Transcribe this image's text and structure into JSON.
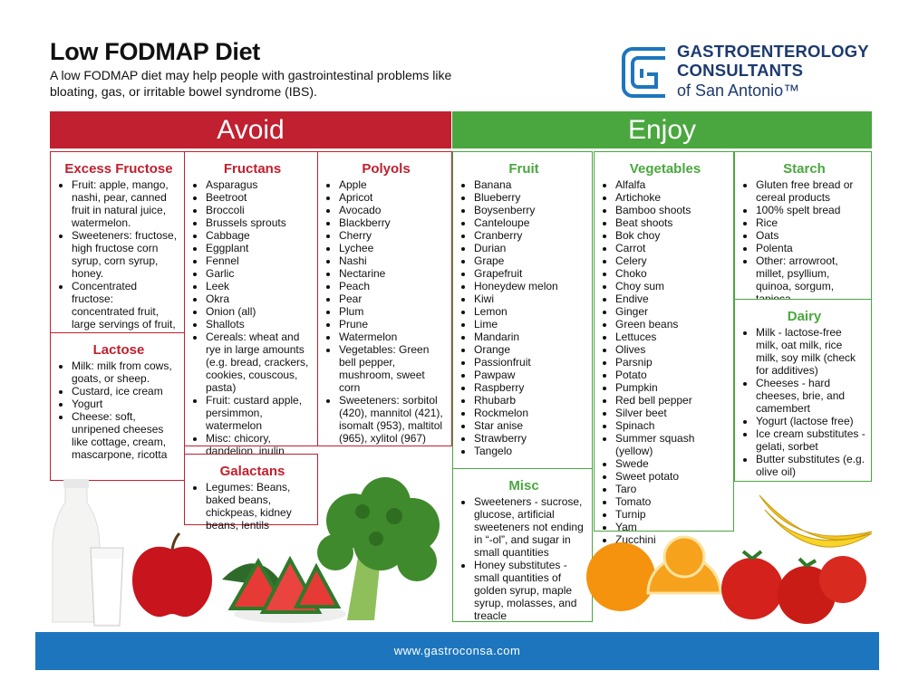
{
  "header": {
    "title": "Low FODMAP Diet",
    "subtitle": "A low FODMAP diet may help people with gastrointestinal problems like bloating, gas, or irritable bowel syndrome (IBS)."
  },
  "logo": {
    "line1": "GASTROENTEROLOGY",
    "line2": "CONSULTANTS",
    "line3": "of San Antonio™",
    "color": "#1d3a6e"
  },
  "colors": {
    "avoid": "#c0202f",
    "enjoy": "#4aa73f",
    "footer": "#1d76bd"
  },
  "avoid": {
    "label": "Avoid",
    "excess_fructose": {
      "title": "Excess Fructose",
      "items": [
        "Fruit: apple, mango, nashi, pear, canned fruit in natural juice, watermelon.",
        "Sweeteners: fructose, high fructose corn syrup, corn syrup, honey.",
        "Concentrated fructose: concentrated fruit, large servings of fruit, dried fruit, fruit juice."
      ]
    },
    "lactose": {
      "title": "Lactose",
      "items": [
        "Milk: milk from cows, goats, or sheep.",
        "Custard, ice cream",
        "Yogurt",
        "Cheese: soft, unripened cheeses like cottage, cream, mascarpone, ricotta"
      ]
    },
    "fructans": {
      "title": "Fructans",
      "items": [
        "Asparagus",
        "Beetroot",
        "Broccoli",
        "Brussels sprouts",
        "Cabbage",
        "Eggplant",
        "Fennel",
        "Garlic",
        "Leek",
        "Okra",
        "Onion (all)",
        "Shallots",
        "Cereals: wheat and rye in large amounts (e.g. bread, crackers, cookies, couscous, pasta)",
        "Fruit: custard apple, persimmon, watermelon",
        "Misc: chicory, dandelion, inulin"
      ]
    },
    "polyols": {
      "title": "Polyols",
      "items": [
        "Apple",
        "Apricot",
        "Avocado",
        "Blackberry",
        "Cherry",
        "Lychee",
        "Nashi",
        "Nectarine",
        "Peach",
        "Pear",
        "Plum",
        "Prune",
        "Watermelon",
        "Vegetables: Green bell pepper, mushroom, sweet corn",
        "Sweeteners: sorbitol (420), mannitol (421), isomalt (953), maltitol (965), xylitol (967)"
      ]
    },
    "galactans": {
      "title": "Galactans",
      "items": [
        "Legumes: Beans, baked beans, chickpeas, kidney beans, lentils"
      ]
    }
  },
  "enjoy": {
    "label": "Enjoy",
    "fruit": {
      "title": "Fruit",
      "items": [
        "Banana",
        "Blueberry",
        "Boysenberry",
        "Canteloupe",
        "Cranberry",
        "Durian",
        "Grape",
        "Grapefruit",
        "Honeydew melon",
        "Kiwi",
        "Lemon",
        "Lime",
        "Mandarin",
        "Orange",
        "Passionfruit",
        "Pawpaw",
        "Raspberry",
        "Rhubarb",
        "Rockmelon",
        "Star anise",
        "Strawberry",
        "Tangelo"
      ]
    },
    "vegetables": {
      "title": "Vegetables",
      "items": [
        "Alfalfa",
        "Artichoke",
        "Bamboo shoots",
        "Beat shoots",
        "Bok choy",
        "Carrot",
        "Celery",
        "Choko",
        "Choy sum",
        "Endive",
        "Ginger",
        "Green beans",
        "Lettuces",
        "Olives",
        "Parsnip",
        "Potato",
        "Pumpkin",
        "Red bell pepper",
        "Silver beet",
        "Spinach",
        "Summer squash (yellow)",
        "Swede",
        "Sweet potato",
        "Taro",
        "Tomato",
        "Turnip",
        "Yam",
        "Zucchini"
      ]
    },
    "starch": {
      "title": "Starch",
      "items": [
        "Gluten free bread or cereal products",
        "100% spelt bread",
        "Rice",
        "Oats",
        "Polenta",
        "Other: arrowroot, millet, psyllium, quinoa, sorgum, tapioca"
      ]
    },
    "dairy": {
      "title": "Dairy",
      "items": [
        "Milk - lactose-free milk, oat milk, rice milk, soy milk (check for additives)",
        "Cheeses - hard cheeses, brie, and camembert",
        "Yogurt (lactose free)",
        "Ice cream substitutes - gelati, sorbet",
        "Butter substitutes (e.g. olive oil)"
      ]
    },
    "misc": {
      "title": "Misc",
      "items": [
        "Sweeteners - sucrose, glucose, artificial sweeteners not ending in “-ol”, and sugar in small quantities",
        "Honey substitutes - small quantities of golden syrup, maple syrup, molasses, and treacle"
      ]
    }
  },
  "footer": {
    "url": "www.gastroconsa.com"
  },
  "images": [
    "milk-bottle",
    "apple",
    "watermelon-slices",
    "broccoli",
    "oranges",
    "tomatoes",
    "bananas"
  ]
}
